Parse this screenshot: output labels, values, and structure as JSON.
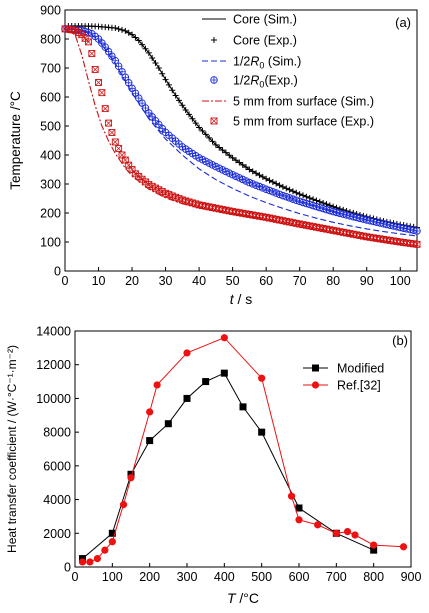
{
  "chart_data": [
    {
      "type": "line",
      "panel_label": "(a)",
      "xlabel_var": "t",
      "xlabel_unit": " / s",
      "ylabel": "Temperature /°C",
      "xlim": [
        0,
        105
      ],
      "ylim": [
        0,
        900
      ],
      "xticks": [
        0,
        10,
        20,
        30,
        40,
        50,
        60,
        70,
        80,
        90,
        100
      ],
      "yticks": [
        0,
        100,
        200,
        300,
        400,
        500,
        600,
        700,
        800,
        900
      ],
      "legend_position": "top-right",
      "series": [
        {
          "name": "Core (Sim.)",
          "legend_main": "Core (Sim.)",
          "legend_sub": "",
          "legend_tail": "",
          "style": "solid",
          "color": "#000000",
          "x": [
            0,
            5,
            10,
            15,
            18,
            20,
            22,
            25,
            28,
            30,
            33,
            36,
            40,
            45,
            50,
            55,
            60,
            65,
            70,
            75,
            80,
            85,
            90,
            95,
            100,
            105
          ],
          "y": [
            845,
            845,
            843,
            838,
            828,
            815,
            795,
            752,
            700,
            660,
            605,
            555,
            495,
            435,
            390,
            350,
            318,
            290,
            265,
            243,
            222,
            203,
            187,
            172,
            160,
            150
          ]
        },
        {
          "name": "Core (Exp.)",
          "legend_main": "Core (Exp.)",
          "legend_sub": "",
          "legend_tail": "",
          "style": "plus",
          "color": "#000000",
          "x": [
            0,
            5,
            10,
            15,
            18,
            20,
            22,
            25,
            28,
            30,
            33,
            36,
            40,
            45,
            50,
            55,
            60,
            65,
            70,
            75,
            80,
            85,
            90,
            95,
            100,
            105
          ],
          "y": [
            845,
            845,
            843,
            838,
            828,
            815,
            795,
            752,
            700,
            660,
            605,
            555,
            495,
            435,
            390,
            350,
            318,
            290,
            265,
            243,
            222,
            203,
            187,
            172,
            160,
            150
          ]
        },
        {
          "name": "1/2R0 (Sim.)",
          "legend_main": "1/2",
          "legend_sub": "0",
          "legend_tail": " (Sim.)",
          "style": "dashed",
          "color": "#1a2bd6",
          "x": [
            0,
            5,
            8,
            10,
            12,
            15,
            18,
            20,
            25,
            30,
            35,
            40,
            45,
            50,
            55,
            60,
            65,
            70,
            75,
            80,
            85,
            90,
            95,
            100,
            105
          ],
          "y": [
            835,
            830,
            815,
            795,
            765,
            715,
            655,
            615,
            525,
            455,
            400,
            352,
            315,
            285,
            258,
            236,
            216,
            198,
            182,
            168,
            156,
            145,
            136,
            128,
            121
          ]
        },
        {
          "name": "1/2R0(Exp.)",
          "legend_main": "1/2",
          "legend_sub": "0",
          "legend_tail": "(Exp.)",
          "style": "circle-plus",
          "color": "#1a2bd6",
          "x": [
            0,
            5,
            8,
            10,
            12,
            15,
            18,
            20,
            25,
            30,
            35,
            40,
            45,
            50,
            55,
            60,
            65,
            70,
            75,
            80,
            85,
            90,
            95,
            100,
            105
          ],
          "y": [
            835,
            830,
            818,
            800,
            772,
            725,
            668,
            630,
            545,
            478,
            428,
            390,
            360,
            332,
            305,
            282,
            260,
            240,
            222,
            205,
            190,
            176,
            163,
            150,
            138
          ]
        },
        {
          "name": "5 mm from surface (Sim.)",
          "legend_main": "5 mm from surface (Sim.)",
          "legend_sub": "",
          "legend_tail": "",
          "style": "dashdot",
          "color": "#cc1111",
          "x": [
            0,
            3,
            5,
            7,
            9,
            11,
            13,
            15,
            18,
            20,
            25,
            30,
            35,
            40,
            50,
            60,
            70,
            80,
            90,
            100,
            105
          ],
          "y": [
            835,
            815,
            745,
            655,
            570,
            500,
            448,
            405,
            355,
            328,
            282,
            252,
            232,
            218,
            198,
            180,
            160,
            135,
            112,
            95,
            88
          ]
        },
        {
          "name": "5 mm from surface (Exp.)",
          "legend_main": "5 mm from surface (Exp.)",
          "legend_sub": "",
          "legend_tail": "",
          "style": "square-x",
          "color": "#cc1111",
          "x": [
            0,
            3,
            5,
            7,
            8,
            9,
            10,
            11,
            12,
            13,
            15,
            17,
            19,
            21,
            25,
            30,
            35,
            40,
            50,
            60,
            70,
            80,
            90,
            100,
            105
          ],
          "y": [
            835,
            830,
            815,
            790,
            750,
            695,
            650,
            615,
            560,
            510,
            445,
            400,
            365,
            335,
            298,
            268,
            245,
            228,
            205,
            185,
            162,
            140,
            118,
            100,
            92
          ]
        }
      ]
    },
    {
      "type": "line",
      "panel_label": "(b)",
      "xlabel_var": "T",
      "xlabel_unit": " /°C",
      "ylabel": "Heat transfer coefficient / (W·°C⁻¹·m⁻²)",
      "xlim": [
        0,
        900
      ],
      "ylim": [
        0,
        14000
      ],
      "xticks": [
        0,
        100,
        200,
        300,
        400,
        500,
        600,
        700,
        800,
        900
      ],
      "yticks": [
        0,
        2000,
        4000,
        6000,
        8000,
        10000,
        12000,
        14000
      ],
      "legend_position": "top-right",
      "series": [
        {
          "name": "Modified",
          "style": "square",
          "color": "#000000",
          "x": [
            20,
            100,
            150,
            200,
            250,
            300,
            350,
            400,
            450,
            500,
            600,
            700,
            800
          ],
          "y": [
            500,
            2000,
            5500,
            7500,
            8500,
            10000,
            11000,
            11500,
            9500,
            8000,
            3500,
            2000,
            1000
          ]
        },
        {
          "name": "Ref.[32]",
          "style": "circle",
          "color": "#ee1111",
          "x": [
            20,
            40,
            60,
            80,
            100,
            130,
            150,
            200,
            220,
            300,
            400,
            500,
            580,
            600,
            650,
            700,
            730,
            750,
            800,
            880
          ],
          "y": [
            300,
            300,
            500,
            1000,
            1500,
            3700,
            5300,
            9200,
            10800,
            12700,
            13600,
            11200,
            4200,
            2800,
            2500,
            2000,
            2100,
            1900,
            1300,
            1200
          ]
        }
      ]
    }
  ]
}
